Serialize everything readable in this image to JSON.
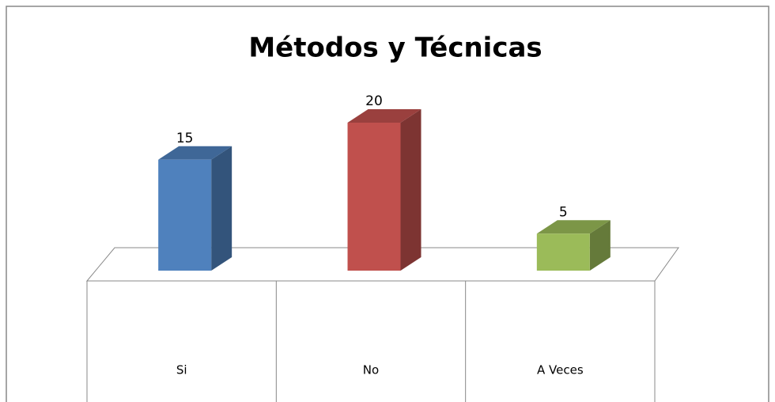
{
  "chart_data": {
    "type": "bar3d",
    "title": "Métodos y Técnicas",
    "categories": [
      "Si",
      "No",
      "A Veces"
    ],
    "values": [
      15,
      20,
      5
    ],
    "colors": [
      "#4f81bd",
      "#c0504d",
      "#9bbb59"
    ]
  }
}
